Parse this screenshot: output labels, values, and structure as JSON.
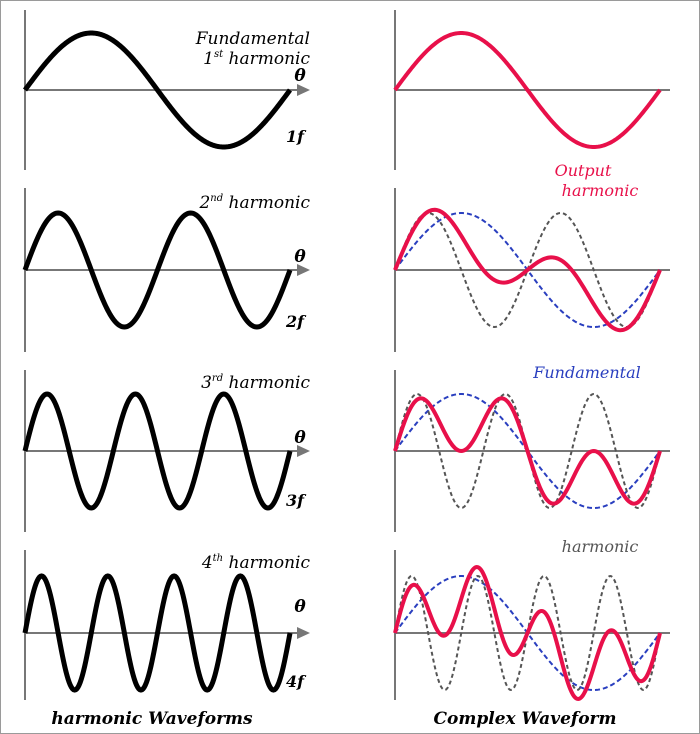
{
  "left_panels": [
    {
      "label_line1": "Fundamental",
      "label_line2_base": "1",
      "label_line2_sup": "st",
      "label_line2_rest": " harmonic",
      "axis_symbol": "θ",
      "freq_label": "1f",
      "cycles": 1
    },
    {
      "label_line1": "",
      "label_line2_base": "2",
      "label_line2_sup": "nd",
      "label_line2_rest": " harmonic",
      "axis_symbol": "θ",
      "freq_label": "2f",
      "cycles": 2
    },
    {
      "label_line1": "",
      "label_line2_base": "3",
      "label_line2_sup": "rd",
      "label_line2_rest": " harmonic",
      "axis_symbol": "θ",
      "freq_label": "3f",
      "cycles": 3
    },
    {
      "label_line1": "",
      "label_line2_base": "4",
      "label_line2_sup": "th",
      "label_line2_rest": " harmonic",
      "axis_symbol": "θ",
      "freq_label": "4f",
      "cycles": 4
    }
  ],
  "right_labels": {
    "output_line1": "Output",
    "output_line2": "harmonic",
    "fundamental": "Fundamental",
    "harmonic": "harmonic"
  },
  "captions": {
    "left": "harmonic Waveforms",
    "right": "Complex Waveform"
  },
  "colors": {
    "harmonic_wave": "#000000",
    "output_wave": "#e8104a",
    "fundamental_wave": "#2a3fbf",
    "harmonic_overlay": "#555555",
    "axis": "#777777",
    "label_red": "#e8104a",
    "label_blue": "#2a3fbf",
    "label_gray": "#555555"
  }
}
